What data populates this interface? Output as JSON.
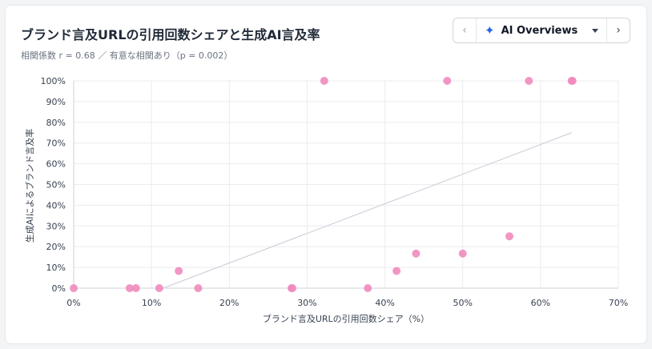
{
  "header": {
    "title": "ブランド言及URLの引用回数シェアと生成AI言及率",
    "subtitle": "相関係数 r = 0.68 ／ 有意な相関あり（p = 0.002）"
  },
  "selector": {
    "label": "AI Overviews",
    "prev_icon": "chevron-left-icon",
    "next_icon": "chevron-right-icon",
    "sparkle_icon": "sparkle-icon"
  },
  "chart_data": {
    "type": "scatter",
    "xlabel": "ブランド言及URLの引用回数シェア（%）",
    "ylabel": "生成AIによるブランド言及率",
    "xlim": [
      0,
      70
    ],
    "ylim": [
      0,
      100
    ],
    "x_ticks": [
      0,
      10,
      20,
      30,
      40,
      50,
      60,
      70
    ],
    "y_ticks": [
      0,
      10,
      20,
      30,
      40,
      50,
      60,
      70,
      80,
      90,
      100
    ],
    "x_tick_labels": [
      "0%",
      "10%",
      "20%",
      "30%",
      "40%",
      "50%",
      "60%",
      "70%"
    ],
    "y_tick_labels": [
      "0%",
      "10%",
      "20%",
      "30%",
      "40%",
      "50%",
      "60%",
      "70%",
      "80%",
      "90%",
      "100%"
    ],
    "grid": true,
    "point_color": "#f08bbd",
    "trend_color": "#c9c9d6",
    "series": [
      {
        "points": [
          [
            0,
            0
          ],
          [
            7.2,
            0
          ],
          [
            8.0,
            0
          ],
          [
            11.0,
            0
          ],
          [
            13.5,
            8.3
          ],
          [
            16.0,
            0
          ],
          [
            28.0,
            0
          ],
          [
            28.1,
            0
          ],
          [
            32.2,
            100
          ],
          [
            37.8,
            0
          ],
          [
            41.5,
            8.3
          ],
          [
            44.0,
            16.7
          ],
          [
            48.0,
            100
          ],
          [
            50.0,
            16.7
          ],
          [
            56.0,
            25.0
          ],
          [
            58.5,
            100
          ],
          [
            64.0,
            100
          ],
          [
            64.1,
            100
          ]
        ]
      }
    ],
    "trendline": {
      "x": [
        11.5,
        64.0
      ],
      "y": [
        0,
        75.0
      ]
    }
  }
}
